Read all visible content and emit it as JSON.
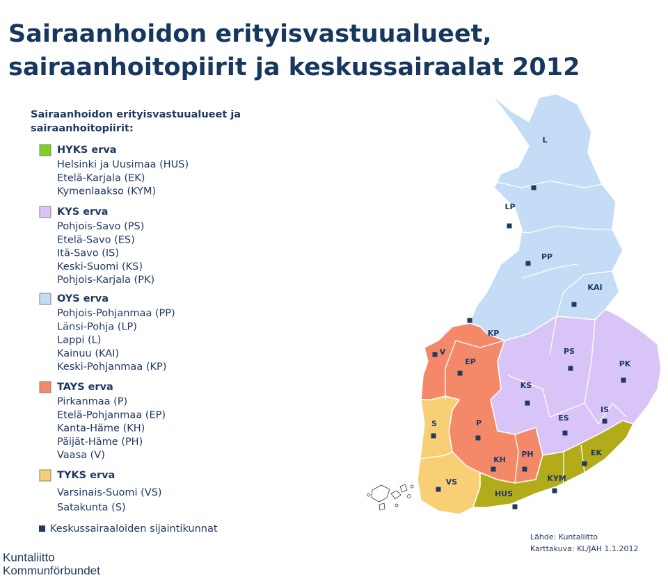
{
  "title": [
    "Sairaanhoidon erityisvastuualueet,",
    "sairaanhoitopiirit ja keskussairaalat 2012"
  ],
  "legend": {
    "heading": [
      "Sairaanhoidon erityisvastuualueet ja",
      "sairaanhoitopiirit:"
    ],
    "groups": [
      {
        "name": "HYKS erva",
        "color": "#7fd320",
        "items": [
          "Helsinki ja Uusimaa (HUS)",
          "Etelä-Karjala (EK)",
          "Kymenlaakso (KYM)"
        ]
      },
      {
        "name": "KYS erva",
        "color": "#d9c4f7",
        "items": [
          "Pohjois-Savo (PS)",
          "Etelä-Savo (ES)",
          "Itä-Savo (IS)",
          "Keski-Suomi (KS)",
          "Pohjois-Karjala (PK)"
        ]
      },
      {
        "name": "OYS erva",
        "color": "#c5dcf6",
        "items": [
          "Pohjois-Pohjanmaa (PP)",
          "Länsi-Pohja (LP)",
          "Lappi (L)",
          "Kainuu (KAI)",
          "Keski-Pohjanmaa (KP)"
        ]
      },
      {
        "name": "TAYS erva",
        "color": "#f4896a",
        "items": [
          "Pirkanmaa (P)",
          "Etelä-Pohjanmaa (EP)",
          "Kanta-Häme (KH)",
          "Päijät-Häme (PH)",
          "Vaasa (V)"
        ]
      },
      {
        "name": "TYKS erva",
        "color": "#f9cf76",
        "items": [
          "Varsinais-Suomi (VS)",
          "Satakunta (S)"
        ]
      }
    ],
    "marker": "Keskussairaaloiden sijaintikunnat"
  },
  "map": {
    "labels": [
      "L",
      "LP",
      "PP",
      "KAI",
      "KP",
      "V",
      "EP",
      "PS",
      "PK",
      "KS",
      "ES",
      "IS",
      "S",
      "P",
      "KH",
      "PH",
      "EK",
      "KYM",
      "HUS",
      "VS"
    ]
  },
  "source": [
    "Lähde: Kuntaliitto",
    "Karttakuva: KL/JAH 1.1.2012"
  ],
  "logo": [
    "Kuntaliitto",
    "Kommunförbundet"
  ]
}
